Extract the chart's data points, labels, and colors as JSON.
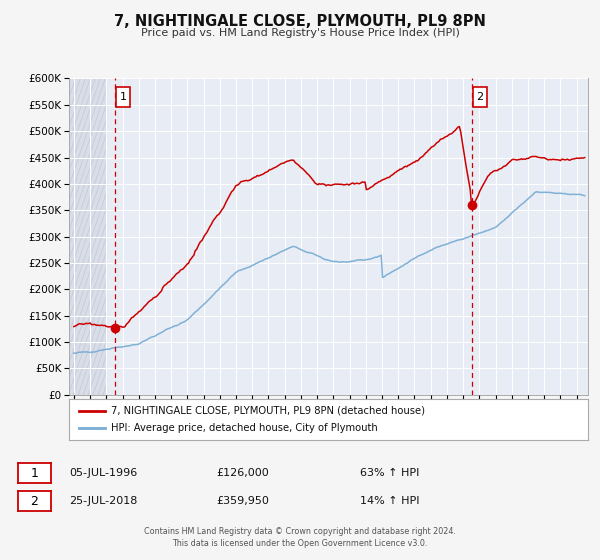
{
  "title": "7, NIGHTINGALE CLOSE, PLYMOUTH, PL9 8PN",
  "subtitle": "Price paid vs. HM Land Registry's House Price Index (HPI)",
  "red_line_label": "7, NIGHTINGALE CLOSE, PLYMOUTH, PL9 8PN (detached house)",
  "blue_line_label": "HPI: Average price, detached house, City of Plymouth",
  "point1_date": "05-JUL-1996",
  "point1_price": 126000,
  "point1_hpi": "63% ↑ HPI",
  "point2_date": "25-JUL-2018",
  "point2_price": 359950,
  "point2_hpi": "14% ↑ HPI",
  "point1_year": 1996.54,
  "point2_year": 2018.54,
  "ylim_max": 600000,
  "xmin": 1993.7,
  "xmax": 2025.7,
  "bg_color": "#f5f5f5",
  "plot_bg_color": "#e8edf5",
  "hatch_bg_color": "#d8dde8",
  "grid_color": "#ffffff",
  "red_color": "#cc0000",
  "blue_color": "#7aadd4",
  "footer_text": "Contains HM Land Registry data © Crown copyright and database right 2024.\nThis data is licensed under the Open Government Licence v3.0."
}
